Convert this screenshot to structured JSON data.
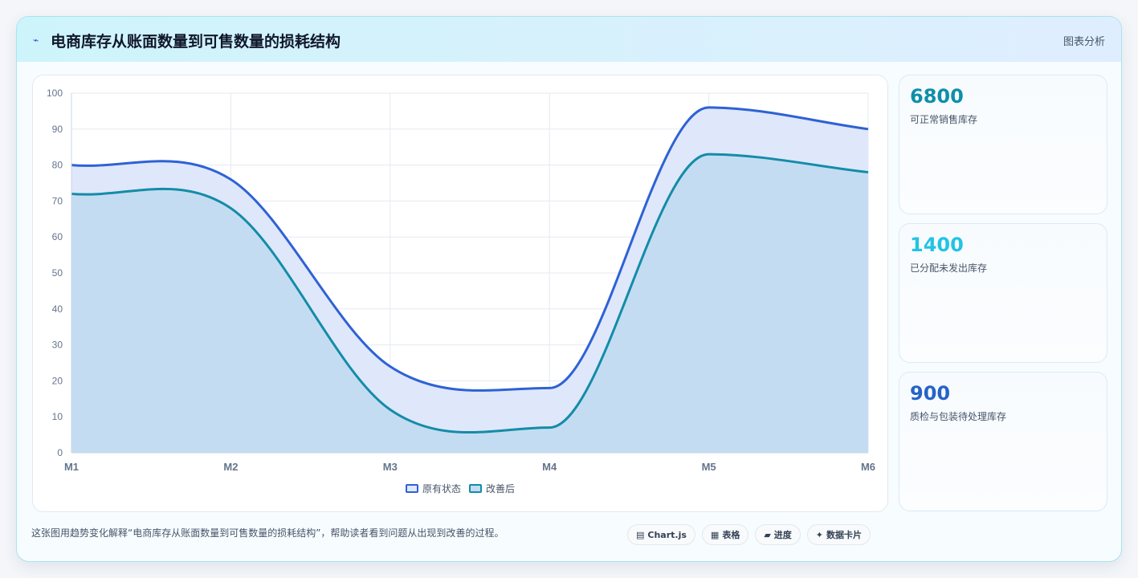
{
  "header": {
    "icon": "⌁",
    "title": "电商库存从账面数量到可售数量的损耗结构",
    "tag": "图表分析"
  },
  "kpis": [
    {
      "value": "6800",
      "label": "可正常销售库存",
      "color": "#0e8fa8"
    },
    {
      "value": "1400",
      "label": "已分配未发出库存",
      "color": "#22c3e6"
    },
    {
      "value": "900",
      "label": "质检与包装待处理库存",
      "color": "#2563c9"
    }
  ],
  "caption": "这张图用趋势变化解释“电商库存从账面数量到可售数量的损耗结构”，帮助读者看到问题从出现到改善的过程。",
  "chips": [
    {
      "icon": "▤",
      "label": "Chart.js"
    },
    {
      "icon": "▦",
      "label": "表格"
    },
    {
      "icon": "▰",
      "label": "进度"
    },
    {
      "icon": "✦",
      "label": "数据卡片"
    }
  ],
  "chart_data": {
    "type": "area",
    "categories": [
      "M1",
      "M2",
      "M3",
      "M4",
      "M5",
      "M6"
    ],
    "series": [
      {
        "name": "原有状态",
        "values": [
          80,
          76,
          24,
          18,
          96,
          90
        ],
        "color": "#2e62d4",
        "fill": "#dfe7fb"
      },
      {
        "name": "改善后",
        "values": [
          72,
          68,
          12,
          7,
          83,
          78
        ],
        "color": "#138ca8",
        "fill": "#c4dcf2"
      }
    ],
    "ylim": [
      0,
      100
    ],
    "yticks": [
      0,
      10,
      20,
      30,
      40,
      50,
      60,
      70,
      80,
      90,
      100
    ],
    "grid": true,
    "legend": "bottom"
  }
}
